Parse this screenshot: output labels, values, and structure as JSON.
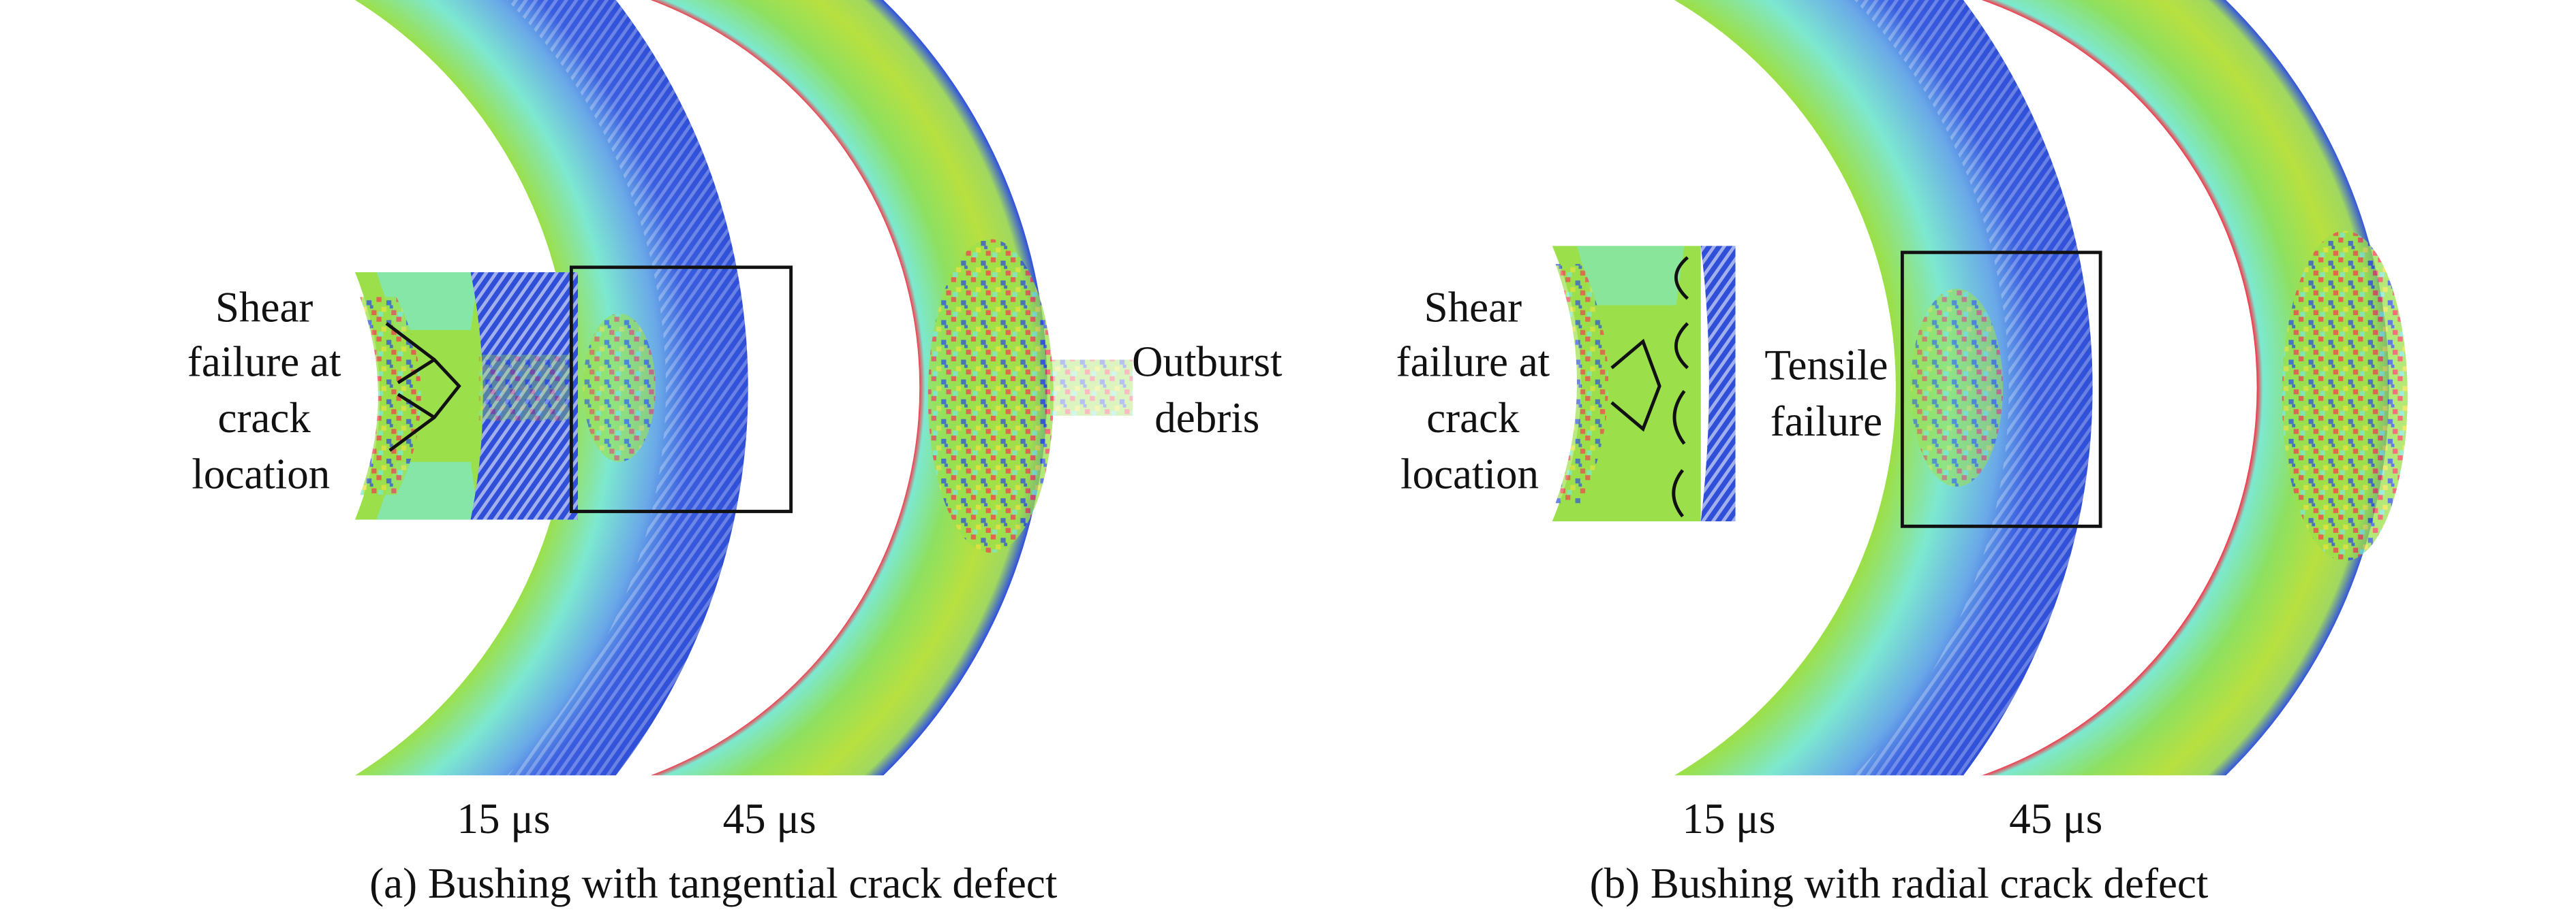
{
  "panels": [
    {
      "id": "a",
      "caption": "(a) Bushing with tangential crack defect",
      "inset_label": [
        "Shear",
        "failure at",
        "crack",
        "location"
      ],
      "side_label": [
        "Outburst",
        "debris"
      ],
      "time_labels": [
        "15 μs",
        "45 μs"
      ]
    },
    {
      "id": "b",
      "caption": "(b) Bushing with radial crack defect",
      "inset_label": [
        "Shear",
        "failure at",
        "crack",
        "location"
      ],
      "side_label": [
        "Tensile",
        "failure"
      ],
      "time_labels": [
        "15 μs",
        "45 μs"
      ]
    }
  ],
  "colors": {
    "blue": "#2f4fd8",
    "cyan": "#7de8d0",
    "green": "#9be04a",
    "yellow": "#e8e040",
    "red": "#f04050",
    "annotation": "#111111"
  }
}
